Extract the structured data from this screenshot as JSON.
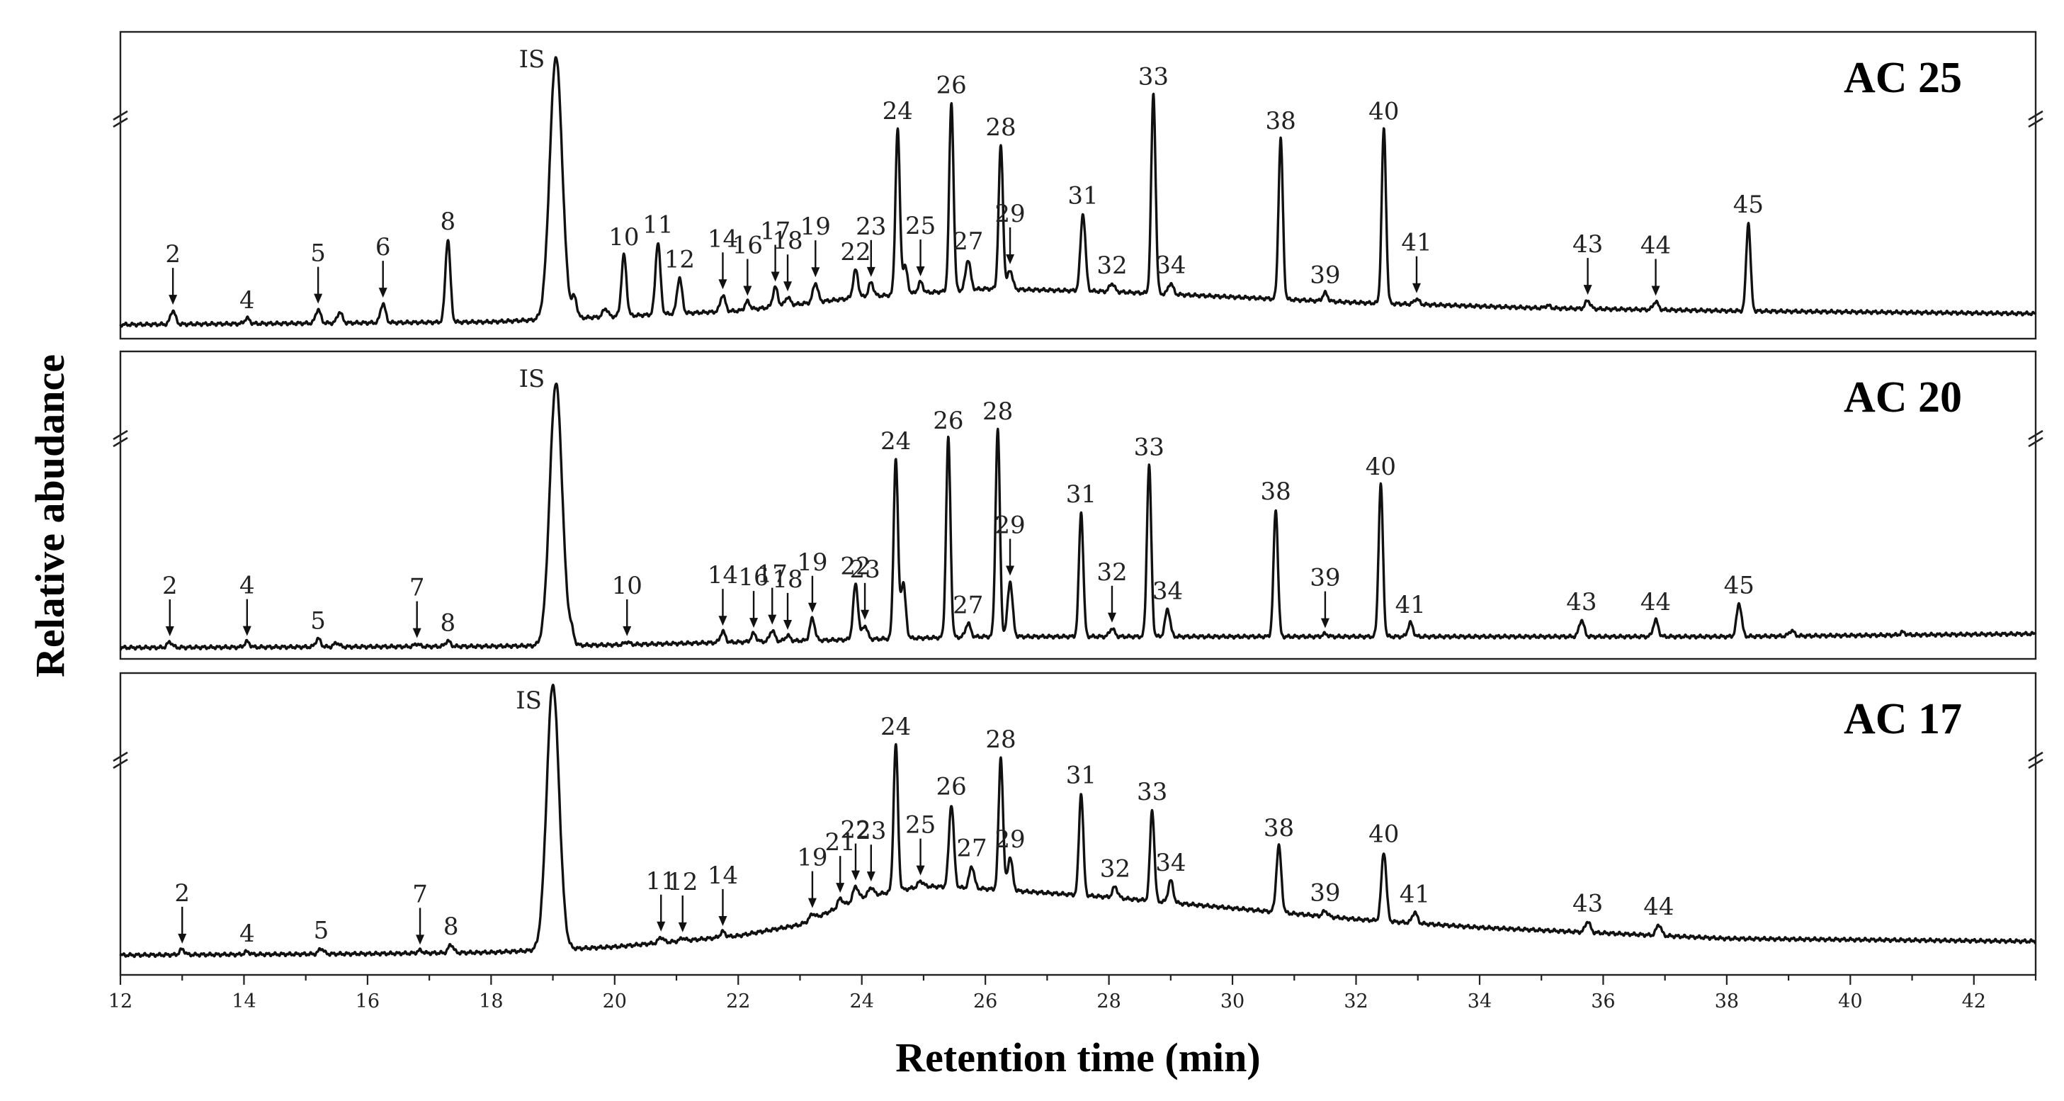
{
  "chart_data": {
    "type": "line",
    "xlabel": "Retention time (min)",
    "ylabel": "Relative abudance",
    "xlim": [
      12,
      43
    ],
    "x_ticks": [
      12,
      14,
      16,
      18,
      20,
      22,
      24,
      26,
      28,
      30,
      32,
      34,
      36,
      38,
      40,
      42
    ],
    "panels": [
      {
        "title": "AC 25",
        "baseline": [
          [
            12,
            0.02
          ],
          [
            15,
            0.025
          ],
          [
            18,
            0.03
          ],
          [
            20,
            0.05
          ],
          [
            22,
            0.07
          ],
          [
            24,
            0.12
          ],
          [
            26,
            0.15
          ],
          [
            28,
            0.14
          ],
          [
            30,
            0.12
          ],
          [
            32,
            0.1
          ],
          [
            35,
            0.08
          ],
          [
            38,
            0.07
          ],
          [
            43,
            0.06
          ]
        ],
        "peaks": [
          {
            "label": "2",
            "rt": 12.85,
            "height": 0.05,
            "arrow": true
          },
          {
            "label": "4",
            "rt": 14.05,
            "height": 0.02,
            "arrow": false
          },
          {
            "label": "5",
            "rt": 15.2,
            "height": 0.05,
            "arrow": true
          },
          {
            "label": "",
            "rt": 15.55,
            "height": 0.04,
            "arrow": false
          },
          {
            "label": "6",
            "rt": 16.25,
            "height": 0.07,
            "arrow": true
          },
          {
            "label": "8",
            "rt": 17.3,
            "height": 0.3,
            "arrow": false
          },
          {
            "label": "IS",
            "rt": 19.05,
            "height": 0.95,
            "arrow": false
          },
          {
            "label": "",
            "rt": 19.35,
            "height": 0.07,
            "arrow": false
          },
          {
            "label": "",
            "rt": 19.85,
            "height": 0.03,
            "arrow": false
          },
          {
            "label": "10",
            "rt": 20.15,
            "height": 0.22,
            "arrow": false
          },
          {
            "label": "11",
            "rt": 20.7,
            "height": 0.26,
            "arrow": false
          },
          {
            "label": "12",
            "rt": 21.05,
            "height": 0.13,
            "arrow": false
          },
          {
            "label": "14",
            "rt": 21.75,
            "height": 0.06,
            "arrow": true
          },
          {
            "label": "16",
            "rt": 22.15,
            "height": 0.03,
            "arrow": true
          },
          {
            "label": "17",
            "rt": 22.6,
            "height": 0.07,
            "arrow": true
          },
          {
            "label": "18",
            "rt": 22.8,
            "height": 0.03,
            "arrow": true
          },
          {
            "label": "19",
            "rt": 23.25,
            "height": 0.07,
            "arrow": true
          },
          {
            "label": "22",
            "rt": 23.9,
            "height": 0.1,
            "arrow": false
          },
          {
            "label": "23",
            "rt": 24.15,
            "height": 0.05,
            "arrow": true
          },
          {
            "label": "24",
            "rt": 24.58,
            "height": 0.6,
            "arrow": false
          },
          {
            "label": "",
            "rt": 24.7,
            "height": 0.1,
            "arrow": false
          },
          {
            "label": "25",
            "rt": 24.95,
            "height": 0.04,
            "arrow": true
          },
          {
            "label": "26",
            "rt": 25.45,
            "height": 0.68,
            "arrow": false
          },
          {
            "label": "27",
            "rt": 25.72,
            "height": 0.11,
            "arrow": false
          },
          {
            "label": "28",
            "rt": 26.25,
            "height": 0.52,
            "arrow": false
          },
          {
            "label": "29",
            "rt": 26.4,
            "height": 0.07,
            "arrow": true
          },
          {
            "label": "31",
            "rt": 27.58,
            "height": 0.28,
            "arrow": false
          },
          {
            "label": "32",
            "rt": 28.05,
            "height": 0.03,
            "arrow": false
          },
          {
            "label": "33",
            "rt": 28.72,
            "height": 0.72,
            "arrow": false
          },
          {
            "label": "34",
            "rt": 29.0,
            "height": 0.04,
            "arrow": false
          },
          {
            "label": "38",
            "rt": 30.78,
            "height": 0.58,
            "arrow": false
          },
          {
            "label": "39",
            "rt": 31.5,
            "height": 0.03,
            "arrow": false
          },
          {
            "label": "40",
            "rt": 32.45,
            "height": 0.63,
            "arrow": false
          },
          {
            "label": "41",
            "rt": 32.98,
            "height": 0.02,
            "arrow": true
          },
          {
            "label": "",
            "rt": 35.1,
            "height": 0.01,
            "arrow": false
          },
          {
            "label": "43",
            "rt": 35.75,
            "height": 0.03,
            "arrow": true
          },
          {
            "label": "44",
            "rt": 36.85,
            "height": 0.03,
            "arrow": true
          },
          {
            "label": "45",
            "rt": 38.35,
            "height": 0.32,
            "arrow": false
          }
        ]
      },
      {
        "title": "AC 20",
        "baseline": [
          [
            12,
            0.01
          ],
          [
            18,
            0.015
          ],
          [
            20,
            0.02
          ],
          [
            22,
            0.03
          ],
          [
            24,
            0.04
          ],
          [
            26,
            0.05
          ],
          [
            30,
            0.05
          ],
          [
            34,
            0.05
          ],
          [
            38,
            0.05
          ],
          [
            43,
            0.06
          ]
        ],
        "peaks": [
          {
            "label": "2",
            "rt": 12.8,
            "height": 0.02,
            "arrow": true
          },
          {
            "label": "4",
            "rt": 14.05,
            "height": 0.02,
            "arrow": true
          },
          {
            "label": "5",
            "rt": 15.2,
            "height": 0.03,
            "arrow": false
          },
          {
            "label": "",
            "rt": 15.5,
            "height": 0.015,
            "arrow": false
          },
          {
            "label": "7",
            "rt": 16.8,
            "height": 0.01,
            "arrow": true
          },
          {
            "label": "8",
            "rt": 17.3,
            "height": 0.02,
            "arrow": false
          },
          {
            "label": "IS",
            "rt": 19.05,
            "height": 0.95,
            "arrow": false
          },
          {
            "label": "",
            "rt": 19.3,
            "height": 0.04,
            "arrow": false
          },
          {
            "label": "10",
            "rt": 20.2,
            "height": 0.01,
            "arrow": true
          },
          {
            "label": "14",
            "rt": 21.75,
            "height": 0.04,
            "arrow": true
          },
          {
            "label": "16",
            "rt": 22.25,
            "height": 0.03,
            "arrow": true
          },
          {
            "label": "17",
            "rt": 22.55,
            "height": 0.04,
            "arrow": true
          },
          {
            "label": "18",
            "rt": 22.8,
            "height": 0.02,
            "arrow": true
          },
          {
            "label": "19",
            "rt": 23.2,
            "height": 0.08,
            "arrow": true
          },
          {
            "label": "22",
            "rt": 23.9,
            "height": 0.2,
            "arrow": false
          },
          {
            "label": "23",
            "rt": 24.05,
            "height": 0.05,
            "arrow": true
          },
          {
            "label": "24",
            "rt": 24.55,
            "height": 0.65,
            "arrow": false
          },
          {
            "label": "",
            "rt": 24.67,
            "height": 0.2,
            "arrow": false
          },
          {
            "label": "26",
            "rt": 25.4,
            "height": 0.72,
            "arrow": false
          },
          {
            "label": "27",
            "rt": 25.72,
            "height": 0.05,
            "arrow": false
          },
          {
            "label": "28",
            "rt": 26.2,
            "height": 0.75,
            "arrow": false
          },
          {
            "label": "29",
            "rt": 26.4,
            "height": 0.2,
            "arrow": true
          },
          {
            "label": "31",
            "rt": 27.55,
            "height": 0.45,
            "arrow": false
          },
          {
            "label": "32",
            "rt": 28.05,
            "height": 0.03,
            "arrow": true
          },
          {
            "label": "33",
            "rt": 28.65,
            "height": 0.62,
            "arrow": false
          },
          {
            "label": "34",
            "rt": 28.95,
            "height": 0.1,
            "arrow": false
          },
          {
            "label": "38",
            "rt": 30.7,
            "height": 0.46,
            "arrow": false
          },
          {
            "label": "39",
            "rt": 31.5,
            "height": 0.01,
            "arrow": true
          },
          {
            "label": "40",
            "rt": 32.4,
            "height": 0.55,
            "arrow": false
          },
          {
            "label": "41",
            "rt": 32.88,
            "height": 0.05,
            "arrow": false
          },
          {
            "label": "43",
            "rt": 35.65,
            "height": 0.06,
            "arrow": false
          },
          {
            "label": "44",
            "rt": 36.85,
            "height": 0.06,
            "arrow": false
          },
          {
            "label": "45",
            "rt": 38.2,
            "height": 0.12,
            "arrow": false
          },
          {
            "label": "",
            "rt": 39.05,
            "height": 0.02,
            "arrow": false
          },
          {
            "label": "",
            "rt": 40.85,
            "height": 0.01,
            "arrow": false
          }
        ]
      },
      {
        "title": "AC 17",
        "baseline": [
          [
            12,
            0.01
          ],
          [
            16,
            0.015
          ],
          [
            18,
            0.02
          ],
          [
            20,
            0.04
          ],
          [
            22,
            0.08
          ],
          [
            23,
            0.12
          ],
          [
            24,
            0.22
          ],
          [
            25,
            0.26
          ],
          [
            26,
            0.25
          ],
          [
            28,
            0.22
          ],
          [
            30,
            0.18
          ],
          [
            32,
            0.14
          ],
          [
            34,
            0.11
          ],
          [
            36,
            0.09
          ],
          [
            38,
            0.07
          ],
          [
            43,
            0.06
          ]
        ],
        "peaks": [
          {
            "label": "2",
            "rt": 13.0,
            "height": 0.02,
            "arrow": true
          },
          {
            "label": "4",
            "rt": 14.05,
            "height": 0.01,
            "arrow": false
          },
          {
            "label": "5",
            "rt": 15.25,
            "height": 0.02,
            "arrow": false
          },
          {
            "label": "7",
            "rt": 16.85,
            "height": 0.01,
            "arrow": true
          },
          {
            "label": "8",
            "rt": 17.35,
            "height": 0.03,
            "arrow": false
          },
          {
            "label": "IS",
            "rt": 19.0,
            "height": 0.96,
            "arrow": false
          },
          {
            "label": "11",
            "rt": 20.75,
            "height": 0.02,
            "arrow": true
          },
          {
            "label": "12",
            "rt": 21.1,
            "height": 0.01,
            "arrow": true
          },
          {
            "label": "14",
            "rt": 21.75,
            "height": 0.02,
            "arrow": true
          },
          {
            "label": "19",
            "rt": 23.2,
            "height": 0.02,
            "arrow": true
          },
          {
            "label": "21",
            "rt": 23.65,
            "height": 0.03,
            "arrow": true
          },
          {
            "label": "22",
            "rt": 23.9,
            "height": 0.05,
            "arrow": true
          },
          {
            "label": "23",
            "rt": 24.15,
            "height": 0.03,
            "arrow": true
          },
          {
            "label": "24",
            "rt": 24.55,
            "height": 0.53,
            "arrow": false
          },
          {
            "label": "25",
            "rt": 24.95,
            "height": 0.02,
            "arrow": true
          },
          {
            "label": "26",
            "rt": 25.45,
            "height": 0.3,
            "arrow": false
          },
          {
            "label": "27",
            "rt": 25.78,
            "height": 0.08,
            "arrow": false
          },
          {
            "label": "28",
            "rt": 26.25,
            "height": 0.48,
            "arrow": false
          },
          {
            "label": "29",
            "rt": 26.4,
            "height": 0.12,
            "arrow": false
          },
          {
            "label": "31",
            "rt": 27.55,
            "height": 0.37,
            "arrow": false
          },
          {
            "label": "32",
            "rt": 28.1,
            "height": 0.04,
            "arrow": false
          },
          {
            "label": "33",
            "rt": 28.7,
            "height": 0.33,
            "arrow": false
          },
          {
            "label": "34",
            "rt": 29.0,
            "height": 0.08,
            "arrow": false
          },
          {
            "label": "38",
            "rt": 30.75,
            "height": 0.24,
            "arrow": false
          },
          {
            "label": "39",
            "rt": 31.5,
            "height": 0.02,
            "arrow": false
          },
          {
            "label": "40",
            "rt": 32.45,
            "height": 0.25,
            "arrow": false
          },
          {
            "label": "41",
            "rt": 32.95,
            "height": 0.04,
            "arrow": false
          },
          {
            "label": "43",
            "rt": 35.75,
            "height": 0.04,
            "arrow": false
          },
          {
            "label": "44",
            "rt": 36.9,
            "height": 0.04,
            "arrow": false
          }
        ]
      }
    ]
  }
}
